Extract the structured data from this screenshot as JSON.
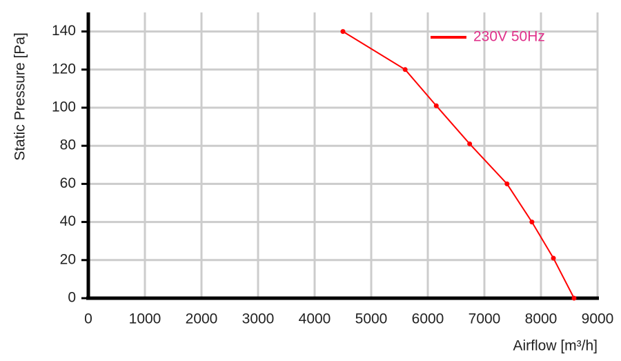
{
  "chart_data": {
    "type": "line",
    "x_label": "Airflow [m³/h]",
    "y_label": "Static Pressure [Pa]",
    "x": [
      4500,
      5600,
      6150,
      6740,
      7400,
      7840,
      8220,
      8585
    ],
    "series": [
      {
        "name": "230V 50Hz",
        "color": "#ff0000",
        "values": [
          140,
          120,
          101,
          81,
          60,
          40,
          21,
          0
        ]
      }
    ],
    "xlim": [
      0,
      9000
    ],
    "xticks": [
      0,
      1000,
      2000,
      3000,
      4000,
      5000,
      6000,
      7000,
      8000,
      9000
    ],
    "ylim": [
      0,
      150
    ],
    "yticks": [
      0,
      20,
      40,
      60,
      80,
      100,
      120,
      140
    ],
    "grid": true,
    "legend": "upper right",
    "legend_text_color": "#e0308a"
  }
}
